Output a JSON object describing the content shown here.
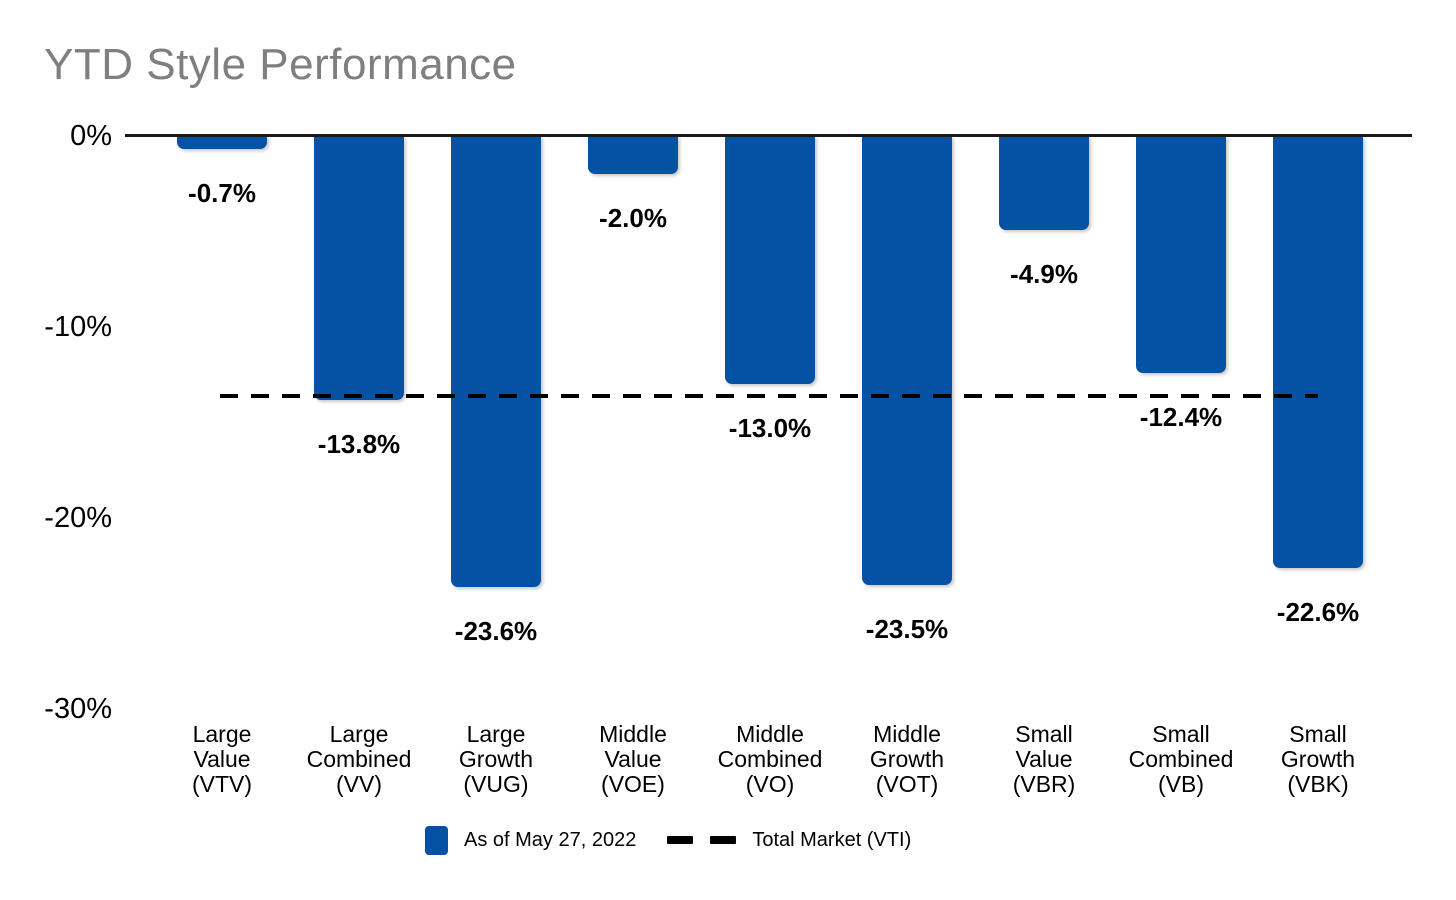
{
  "chart": {
    "title": "YTD Style Performance"
  },
  "chart_data": {
    "type": "bar",
    "title": "YTD Style Performance",
    "categories": [
      [
        "Large",
        "Value",
        "(VTV)"
      ],
      [
        "Large",
        "Combined",
        "(VV)"
      ],
      [
        "Large",
        "Growth",
        "(VUG)"
      ],
      [
        "Middle",
        "Value",
        "(VOE)"
      ],
      [
        "Middle",
        "Combined",
        "(VO)"
      ],
      [
        "Middle",
        "Growth",
        "(VOT)"
      ],
      [
        "Small",
        "Value",
        "(VBR)"
      ],
      [
        "Small",
        "Combined",
        "(VB)"
      ],
      [
        "Small",
        "Growth",
        "(VBK)"
      ]
    ],
    "values": [
      -0.7,
      -13.8,
      -23.6,
      -2.0,
      -13.0,
      -23.5,
      -4.9,
      -12.4,
      -22.6
    ],
    "value_labels": [
      "-0.7%",
      "-13.8%",
      "-23.6%",
      "-2.0%",
      "-13.0%",
      "-23.5%",
      "-4.9%",
      "-12.4%",
      "-22.6%"
    ],
    "ylabel": "",
    "xlabel": "",
    "ylim": [
      -30,
      0
    ],
    "yticks": [
      0,
      -10,
      -20,
      -30
    ],
    "ytick_labels": [
      "0%",
      "-10%",
      "-20%",
      "-30%"
    ],
    "grid": false,
    "legend_position": "bottom",
    "bar_color": "#0552A5",
    "title_color": "#7f7f7f",
    "reference_line": {
      "label": "Total Market (VTI)",
      "value": -13.6,
      "style": "dashed",
      "color": "#000000"
    }
  },
  "legend": {
    "bar_series_label": "As of May 27, 2022",
    "line_series_label": "Total Market (VTI)"
  }
}
